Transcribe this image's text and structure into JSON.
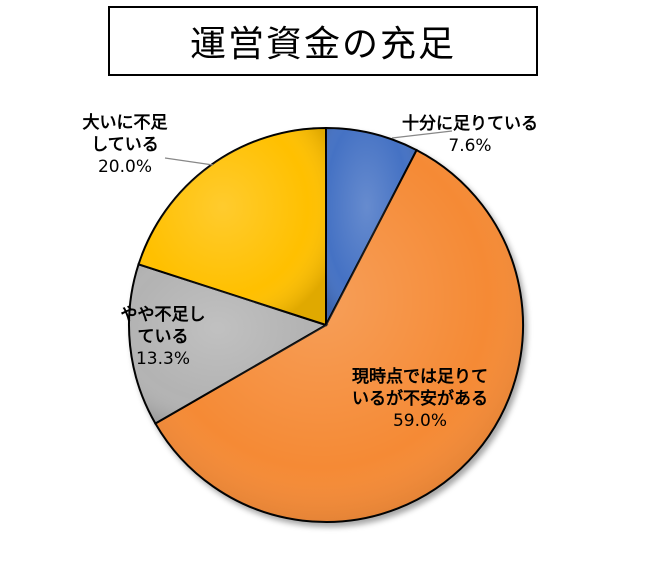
{
  "chart_data": {
    "type": "pie",
    "title": "運営資金の充足",
    "slices": [
      {
        "label_lines": [
          "十分に足りている"
        ],
        "value_label": "7.6%",
        "value": 7.6,
        "color": "#4472c4"
      },
      {
        "label_lines": [
          "現時点では足りて",
          "いるが不安がある"
        ],
        "value_label": "59.0%",
        "value": 59.0,
        "color": "#f58a36"
      },
      {
        "label_lines": [
          "やや不足し",
          "ている"
        ],
        "value_label": "13.3%",
        "value": 13.3,
        "color": "#b3b3b3"
      },
      {
        "label_lines": [
          "大いに不足",
          "している"
        ],
        "value_label": "20.0%",
        "value": 20.0,
        "color": "#ffc000"
      }
    ],
    "start_angle_deg": 0,
    "direction": "clockwise",
    "legend": "none"
  }
}
